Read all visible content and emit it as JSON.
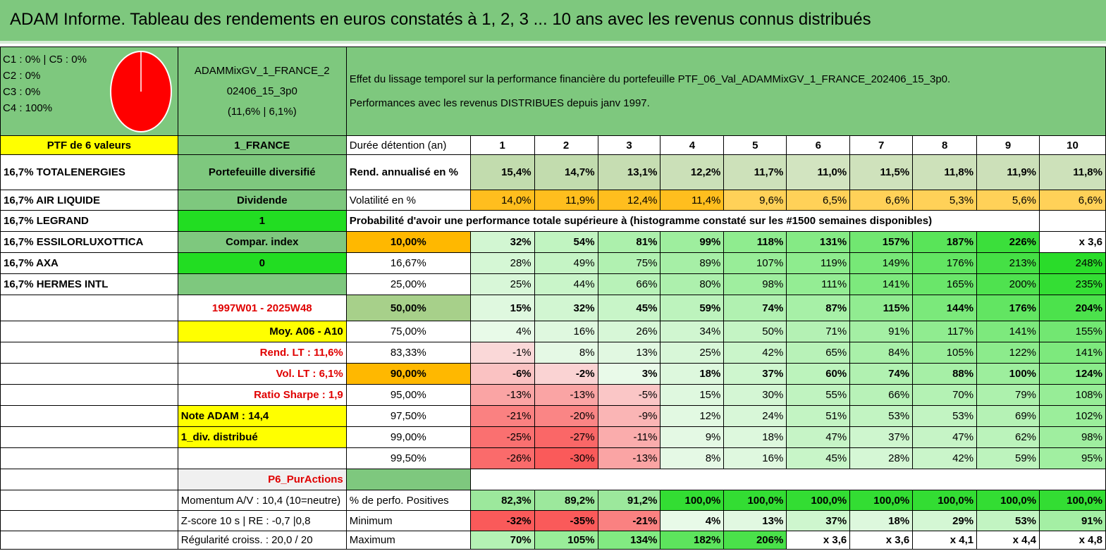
{
  "title": "ADAM Informe. Tableau des rendements en euros constatés à 1, 2, 3 ... 10 ans avec les revenus connus distribués",
  "allocation": {
    "lines": [
      "C1 : 0% | C5 : 0%",
      "C2 : 0%",
      "C3 : 0%",
      "C4 : 100%"
    ],
    "pie_color": "#ff0000"
  },
  "portfolio": {
    "name_line1": "ADAMMixGV_1_FRANCE_2",
    "name_line2": "02406_15_3p0",
    "name_line3": "(11,6% | 6,1%)"
  },
  "description": {
    "line1": "Effet du lissage temporel sur la performance financière du portefeuille PTF_06_Val_ADAMMixGV_1_FRANCE_202406_15_3p0.",
    "line2": "Performances avec les revenus DISTRIBUES depuis janv 1997."
  },
  "ptf_header": "PTF de 6 valeurs",
  "country": "1_FRANCE",
  "holding_label": "Durée détention (an)",
  "years": [
    "1",
    "2",
    "3",
    "4",
    "5",
    "6",
    "7",
    "8",
    "9",
    "10"
  ],
  "holdings": [
    "16,7% TOTALENERGIES",
    "16,7% AIR LIQUIDE",
    "16,7% LEGRAND",
    "16,7% ESSILORLUXOTTICA",
    "16,7% AXA",
    "16,7% HERMES INTL"
  ],
  "info": {
    "diversified": "Portefeuille diversifié",
    "dividend": "Dividende",
    "dividend_value": "1",
    "compar": "Compar. index",
    "compar_value": "0",
    "period": "1997W01 - 2025W48",
    "moy": "Moy. A06 - A10",
    "rend_lt": "Rend. LT : 11,6%",
    "vol_lt": "Vol. LT : 6,1%",
    "sharpe": "Ratio Sharpe : 1,9",
    "note": "Note ADAM : 14,4",
    "div_distrib": "1_div. distribué",
    "p6": "P6_PurActions",
    "momentum": "Momentum A/V : 10,4 (10=neutre)",
    "zscore": "Z-score 10 s | RE : -0,7 |0,8",
    "regularite": "Régularité croiss. : 20,0 / 20"
  },
  "rend": {
    "label": "Rend. annualisé en %",
    "values": [
      "15,4%",
      "14,7%",
      "13,1%",
      "12,2%",
      "11,7%",
      "11,0%",
      "11,5%",
      "11,8%",
      "11,9%",
      "11,8%"
    ]
  },
  "vol": {
    "label": "Volatilité en %",
    "values": [
      "14,0%",
      "11,9%",
      "12,4%",
      "11,4%",
      "9,6%",
      "6,5%",
      "6,6%",
      "5,3%",
      "5,6%",
      "6,6%"
    ]
  },
  "probability_header": "Probabilité d'avoir une performance totale supérieure à (histogramme constaté sur les #1500 semaines disponibles)",
  "quantiles": [
    {
      "p": "10,00%",
      "values": [
        "32%",
        "54%",
        "81%",
        "99%",
        "118%",
        "131%",
        "157%",
        "187%",
        "226%",
        "x 3,6"
      ]
    },
    {
      "p": "16,67%",
      "values": [
        "28%",
        "49%",
        "75%",
        "89%",
        "107%",
        "119%",
        "149%",
        "176%",
        "213%",
        "248%"
      ]
    },
    {
      "p": "25,00%",
      "values": [
        "25%",
        "44%",
        "66%",
        "80%",
        "98%",
        "111%",
        "141%",
        "165%",
        "200%",
        "235%"
      ]
    },
    {
      "p": "50,00%",
      "values": [
        "15%",
        "32%",
        "45%",
        "59%",
        "74%",
        "87%",
        "115%",
        "144%",
        "176%",
        "204%"
      ]
    },
    {
      "p": "75,00%",
      "values": [
        "4%",
        "16%",
        "26%",
        "34%",
        "50%",
        "71%",
        "91%",
        "117%",
        "141%",
        "155%"
      ]
    },
    {
      "p": "83,33%",
      "values": [
        "-1%",
        "8%",
        "13%",
        "25%",
        "42%",
        "65%",
        "84%",
        "105%",
        "122%",
        "141%"
      ]
    },
    {
      "p": "90,00%",
      "values": [
        "-6%",
        "-2%",
        "3%",
        "18%",
        "37%",
        "60%",
        "74%",
        "88%",
        "100%",
        "124%"
      ]
    },
    {
      "p": "95,00%",
      "values": [
        "-13%",
        "-13%",
        "-5%",
        "15%",
        "30%",
        "55%",
        "66%",
        "70%",
        "79%",
        "108%"
      ]
    },
    {
      "p": "97,50%",
      "values": [
        "-21%",
        "-20%",
        "-9%",
        "12%",
        "24%",
        "51%",
        "53%",
        "53%",
        "69%",
        "102%"
      ]
    },
    {
      "p": "99,00%",
      "values": [
        "-25%",
        "-27%",
        "-11%",
        "9%",
        "18%",
        "47%",
        "37%",
        "47%",
        "62%",
        "98%"
      ]
    },
    {
      "p": "99,50%",
      "values": [
        "-26%",
        "-30%",
        "-13%",
        "8%",
        "16%",
        "45%",
        "28%",
        "42%",
        "59%",
        "95%"
      ]
    }
  ],
  "positives": {
    "label": "% de perfo. Positives",
    "values": [
      "82,3%",
      "89,2%",
      "91,2%",
      "100,0%",
      "100,0%",
      "100,0%",
      "100,0%",
      "100,0%",
      "100,0%",
      "100,0%"
    ]
  },
  "minimum": {
    "label": "Minimum",
    "values": [
      "-32%",
      "-35%",
      "-21%",
      "4%",
      "13%",
      "37%",
      "18%",
      "29%",
      "53%",
      "91%"
    ]
  },
  "maximum": {
    "label": "Maximum",
    "values": [
      "70%",
      "105%",
      "134%",
      "182%",
      "206%",
      "x 3,6",
      "x 3,6",
      "x 4,1",
      "x 4,4",
      "x 4,8"
    ]
  }
}
